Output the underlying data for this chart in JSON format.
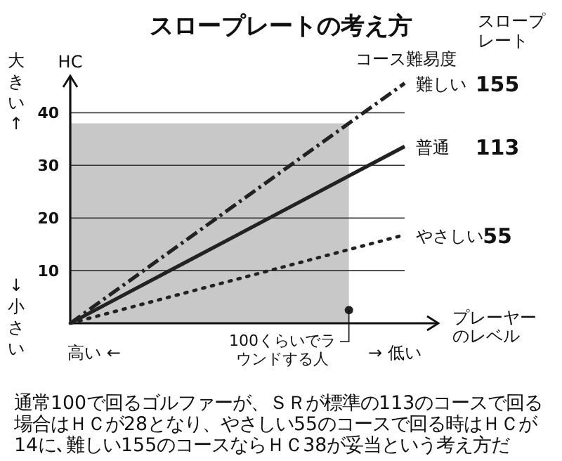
{
  "chart_data": {
    "type": "line",
    "title": "スロープレートの考え方",
    "ylabel": "HC",
    "xlabel": "プレーヤーのレベル",
    "legend_title": "コース難易度",
    "categories": [
      null,
      null,
      null,
      null,
      null,
      null,
      null
    ],
    "ylim": [
      0,
      47
    ],
    "yticks": [
      10,
      20,
      30,
      40
    ],
    "grid": "y",
    "tick_labels": "y",
    "series": [
      {
        "type": "area",
        "color": "#c8c8c8",
        "values": [
          38,
          38,
          38,
          38,
          38,
          38,
          null
        ]
      },
      {
        "name": "難しい",
        "color": "#222222",
        "line_style": "dashed",
        "values": [
          0,
          7.6,
          15.2,
          22.8,
          30.4,
          38,
          45.6
        ]
      },
      {
        "name": "普通",
        "color": "#222222",
        "line_style": "solid",
        "values": [
          0,
          5.6,
          11.2,
          16.8,
          22.4,
          28,
          33.6
        ]
      },
      {
        "name": "やさしい",
        "color": "#222222",
        "line_style": "dotted",
        "values": [
          0,
          2.8,
          5.6,
          8.4,
          11.2,
          14,
          16.8
        ]
      },
      {
        "type": "scatter",
        "color": "#222222",
        "marker": "circle",
        "values": [
          null,
          null,
          null,
          null,
          null,
          2.5,
          null
        ]
      }
    ],
    "annotations": [
      "スロープレート",
      "155",
      "113",
      "55",
      "大きい↑",
      "↓小さい",
      "高い ←",
      "→ 低い",
      "100くらいでラウンドする人",
      "通常100で回るゴルファーが、ＳＲが標準の113のコースで回る場合はＨＣが28となり、やさしい55のコースで回る時はＨＣが14に､難しい155のコースならＨＣ38が妥当という考え方だ"
    ]
  }
}
